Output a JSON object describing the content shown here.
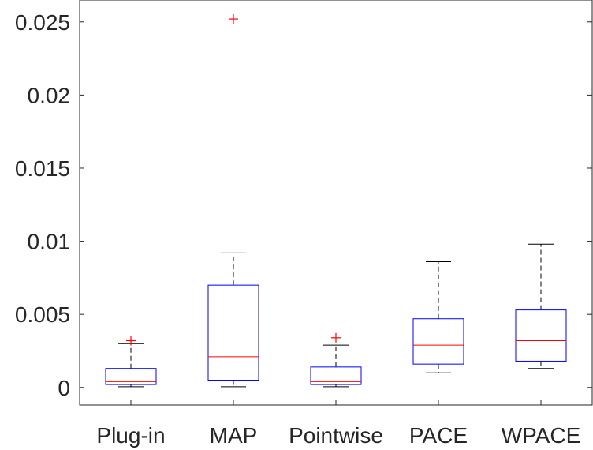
{
  "chart_data": {
    "type": "box",
    "categories": [
      "Plug-in",
      "MAP",
      "Pointwise",
      "PACE",
      "WPACE"
    ],
    "ylim": [
      -0.0012,
      0.0265
    ],
    "yticks": [
      0,
      0.005,
      0.01,
      0.015,
      0.02,
      0.025
    ],
    "ytick_labels": [
      "0",
      "0.005",
      "0.01",
      "0.015",
      "0.02",
      "0.025"
    ],
    "grid": false,
    "boxes": [
      {
        "category": "Plug-in",
        "whisker_low": 5e-05,
        "q1": 0.0002,
        "median": 0.0004,
        "q3": 0.0013,
        "whisker_high": 0.003,
        "outliers": [
          0.0032
        ]
      },
      {
        "category": "MAP",
        "whisker_low": 5e-05,
        "q1": 0.0005,
        "median": 0.0021,
        "q3": 0.007,
        "whisker_high": 0.0092,
        "outliers": [
          0.0252
        ]
      },
      {
        "category": "Pointwise",
        "whisker_low": 5e-05,
        "q1": 0.0002,
        "median": 0.0004,
        "q3": 0.0014,
        "whisker_high": 0.0029,
        "outliers": [
          0.0034
        ]
      },
      {
        "category": "PACE",
        "whisker_low": 0.001,
        "q1": 0.0016,
        "median": 0.0029,
        "q3": 0.0047,
        "whisker_high": 0.0086,
        "outliers": []
      },
      {
        "category": "WPACE",
        "whisker_low": 0.0013,
        "q1": 0.0018,
        "median": 0.0032,
        "q3": 0.0053,
        "whisker_high": 0.0098,
        "outliers": []
      }
    ],
    "colors": {
      "box": "#0000ff",
      "median": "#ff0000",
      "whisker": "#000000",
      "outlier": "#ff0000",
      "axis": "#262626"
    }
  }
}
